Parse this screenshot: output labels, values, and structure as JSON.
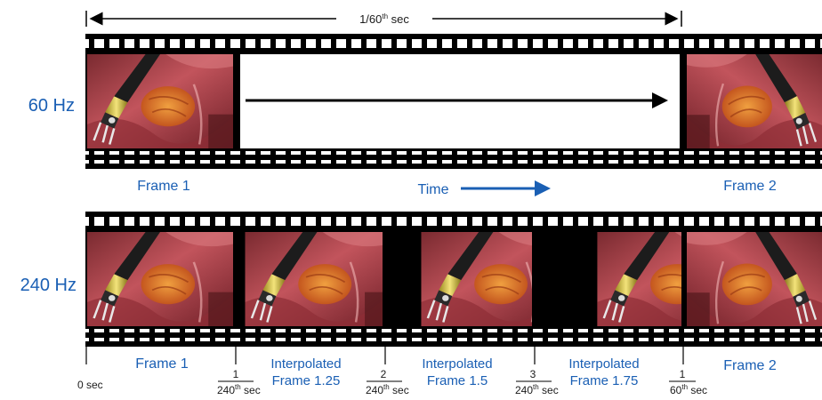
{
  "top": {
    "duration_label": "1/60",
    "duration_sup": "th",
    "duration_unit": " sec",
    "rate_label": "60 Hz",
    "frame_a": "Frame 1",
    "frame_b": "Frame 2",
    "time_label": "Time"
  },
  "bottom": {
    "rate_label": "240 Hz",
    "frames": [
      "Frame 1",
      "Interpolated",
      "Frame 1.25",
      "Interpolated",
      "Frame 1.5",
      "Interpolated",
      "Frame 1.75",
      "Frame 2"
    ],
    "ticks": {
      "zero": "0 sec",
      "t1_num": "1",
      "t1_den": "240",
      "t1_sup": "th",
      "t1_unit": " sec",
      "t2_num": "2",
      "t2_den": "240",
      "t2_sup": "th",
      "t2_unit": " sec",
      "t3_num": "3",
      "t3_den": "240",
      "t3_sup": "th",
      "t3_unit": " sec",
      "t4_num": "1",
      "t4_den": "60",
      "t4_sup": "th",
      "t4_unit": " sec"
    }
  },
  "colors": {
    "label_blue": "#1a5fb4",
    "film_black": "#000000",
    "tissue_red": "#b5414a",
    "instrument_yellow": "#d6c44a"
  }
}
